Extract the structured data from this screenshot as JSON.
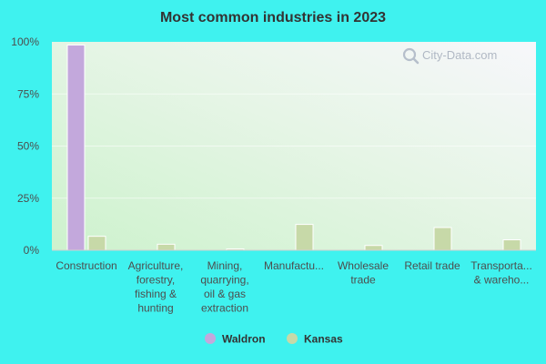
{
  "chart_data": {
    "type": "bar",
    "title": "Most common industries in 2023",
    "categories": [
      [
        "Construction"
      ],
      [
        "Agriculture,",
        "forestry,",
        "fishing &",
        "hunting"
      ],
      [
        "Mining,",
        "quarrying,",
        "oil & gas",
        "extraction"
      ],
      [
        "Manufactu..."
      ],
      [
        "Wholesale",
        "trade"
      ],
      [
        "Retail trade"
      ],
      [
        "Transporta...",
        "& wareho..."
      ]
    ],
    "series": [
      {
        "name": "Waldron",
        "color": "#c3a8dc",
        "values": [
          98.5,
          0,
          0,
          0,
          0,
          0,
          0
        ]
      },
      {
        "name": "Kansas",
        "color": "#c7d9a8",
        "values": [
          6.7,
          2.9,
          0.6,
          12.4,
          2.3,
          10.9,
          5.0
        ]
      }
    ],
    "yticks": [
      "0%",
      "25%",
      "50%",
      "75%",
      "100%"
    ],
    "ylim": [
      0,
      100
    ],
    "grid": true,
    "legend": "bottom"
  },
  "watermark": {
    "text": "City-Data.com",
    "icon": "magnifier-icon"
  }
}
